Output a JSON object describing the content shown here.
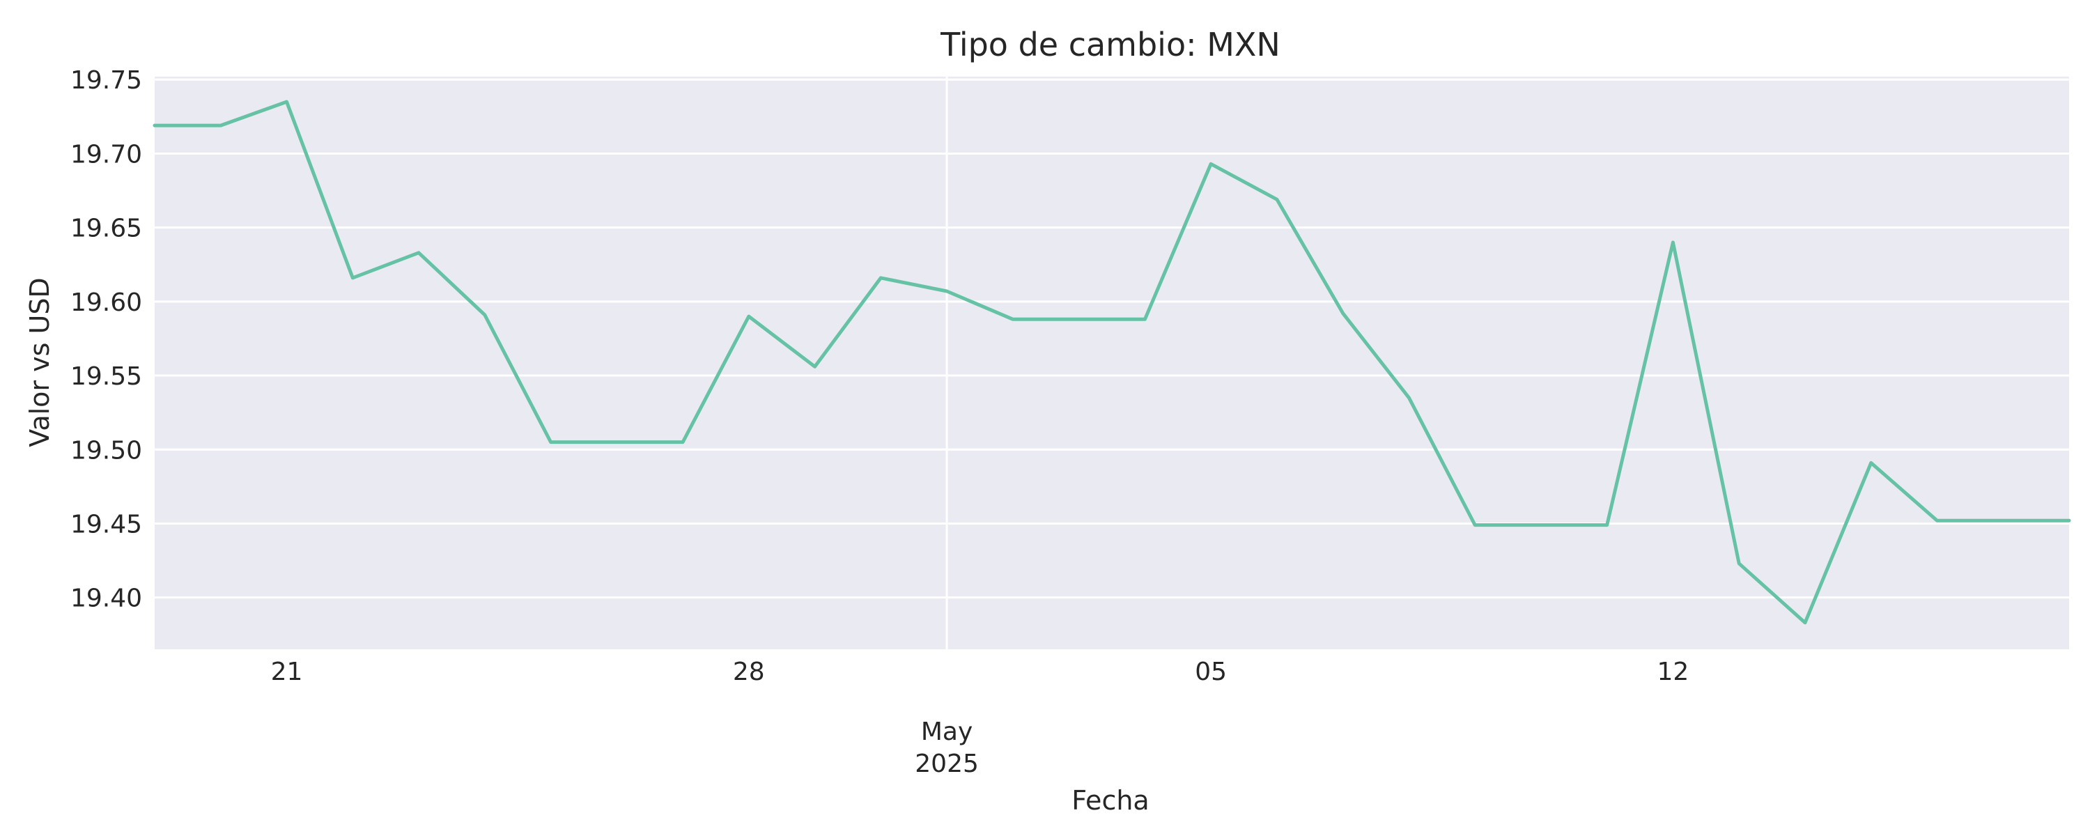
{
  "chart_data": {
    "type": "line",
    "title": "Tipo de cambio: MXN",
    "xlabel": "Fecha",
    "ylabel": "Valor vs USD",
    "x": [
      "2025-04-19",
      "2025-04-20",
      "2025-04-21",
      "2025-04-22",
      "2025-04-23",
      "2025-04-24",
      "2025-04-25",
      "2025-04-26",
      "2025-04-27",
      "2025-04-28",
      "2025-04-29",
      "2025-04-30",
      "2025-05-01",
      "2025-05-02",
      "2025-05-03",
      "2025-05-04",
      "2025-05-05",
      "2025-05-06",
      "2025-05-07",
      "2025-05-08",
      "2025-05-09",
      "2025-05-10",
      "2025-05-11",
      "2025-05-12",
      "2025-05-13",
      "2025-05-14",
      "2025-05-15",
      "2025-05-16",
      "2025-05-17",
      "2025-05-18"
    ],
    "series": [
      {
        "values": [
          19.719,
          19.719,
          19.735,
          19.616,
          19.633,
          19.591,
          19.505,
          19.505,
          19.505,
          19.59,
          19.556,
          19.616,
          19.607,
          19.588,
          19.588,
          19.588,
          19.693,
          19.669,
          19.592,
          19.535,
          19.449,
          19.449,
          19.449,
          19.64,
          19.423,
          19.383,
          19.491,
          19.452,
          19.452,
          19.452
        ]
      }
    ],
    "xlim": [
      "2025-04-19",
      "2025-05-18"
    ],
    "ylim": [
      19.365,
      19.752
    ],
    "y_ticks": [
      "19.40",
      "19.45",
      "19.50",
      "19.55",
      "19.60",
      "19.65",
      "19.70",
      "19.75"
    ],
    "x_ticks": [
      {
        "date": "2025-04-21",
        "label": "21"
      },
      {
        "date": "2025-04-28",
        "label": "28"
      },
      {
        "date": "2025-05-05",
        "label": "05"
      },
      {
        "date": "2025-05-12",
        "label": "12"
      }
    ],
    "x_major_tick": {
      "date": "2025-05-01",
      "label": "May",
      "sublabel": "2025"
    },
    "grid": true,
    "colors": {
      "line": "#66c2a5",
      "plot_background": "#eaeaf2",
      "grid": "#ffffff",
      "text": "#262626"
    }
  }
}
